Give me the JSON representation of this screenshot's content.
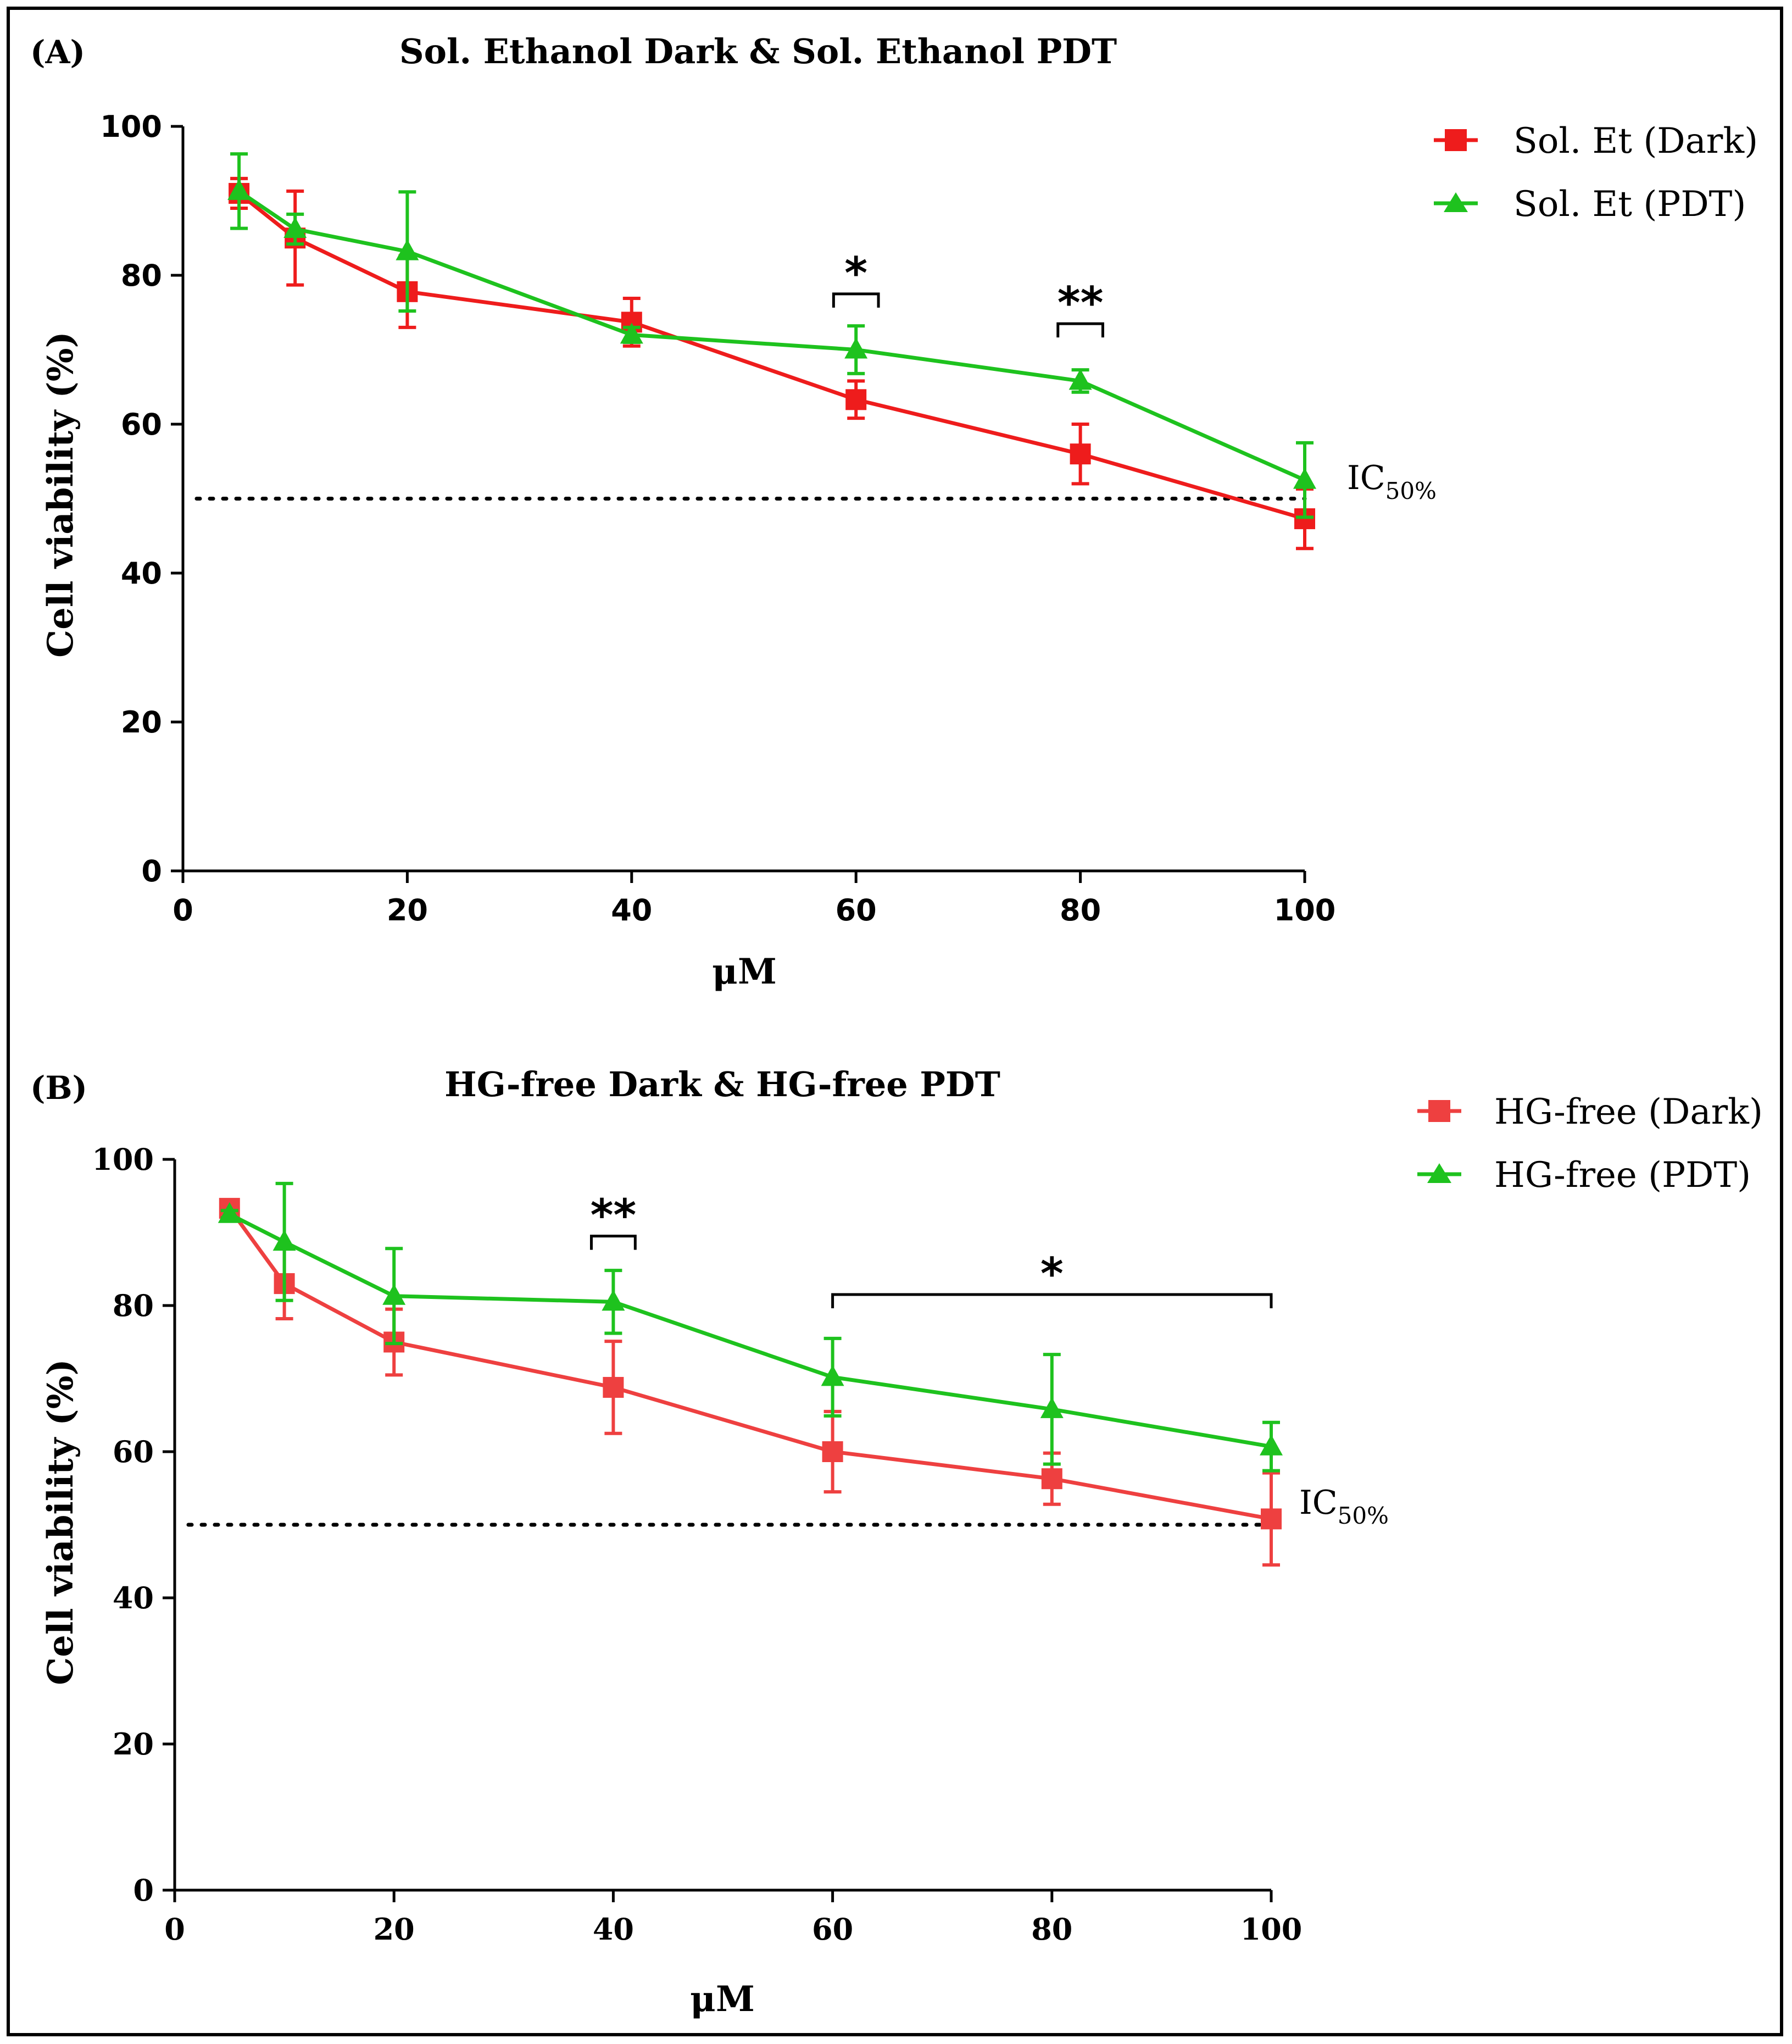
{
  "colors": {
    "dark_a": "#ee1c1c",
    "pdt": "#1ec21e",
    "dark_b": "#ee4040"
  },
  "chart_data": [
    {
      "type": "line",
      "panel_label": "(A)",
      "title": "Sol. Ethanol Dark & Sol. Ethanol PDT",
      "xlabel": "μM",
      "ylabel": "Cell viability (%)",
      "xlim": [
        0,
        100
      ],
      "ylim": [
        0,
        100
      ],
      "xticks": [
        0,
        20,
        40,
        60,
        80,
        100
      ],
      "yticks": [
        0,
        20,
        40,
        60,
        80,
        100
      ],
      "x_tick_labels": [
        "0",
        "20",
        "40",
        "60",
        "80",
        "100"
      ],
      "y_tick_labels": [
        "0",
        "20",
        "40",
        "60",
        "80",
        "100"
      ],
      "reference_line": {
        "y": 50,
        "style": "dotted",
        "label_main": "IC",
        "label_sub": "50%"
      },
      "legend_position": "top-right",
      "series": [
        {
          "name": "Sol. Et (Dark)",
          "marker": "square",
          "x": [
            5,
            10,
            20,
            40,
            60,
            80,
            100
          ],
          "values": [
            91,
            85,
            77.8,
            73.7,
            63.3,
            56,
            47.3
          ],
          "errors": [
            2.0,
            6.3,
            4.8,
            3.2,
            2.5,
            4.0,
            4.0
          ]
        },
        {
          "name": "Sol. Et (PDT)",
          "marker": "triangle",
          "x": [
            5,
            10,
            20,
            40,
            60,
            80,
            100
          ],
          "values": [
            91.3,
            86.2,
            83.2,
            72,
            70,
            65.8,
            52.5
          ],
          "errors": [
            5.0,
            2.0,
            8.0,
            1.0,
            3.2,
            1.5,
            5.0
          ]
        }
      ],
      "significance": [
        {
          "x1": 58,
          "x2": 62,
          "y": 77.5,
          "label": "*"
        },
        {
          "x1": 78,
          "x2": 82,
          "y": 73.5,
          "label": "**"
        }
      ]
    },
    {
      "type": "line",
      "panel_label": "(B)",
      "title": "HG-free Dark & HG-free PDT",
      "xlabel": "μM",
      "ylabel": "Cell viability (%)",
      "xlim": [
        0,
        100
      ],
      "ylim": [
        0,
        100
      ],
      "xticks": [
        0,
        20,
        40,
        60,
        80,
        100
      ],
      "yticks": [
        0,
        20,
        40,
        60,
        80,
        100
      ],
      "x_tick_labels": [
        "0",
        "20",
        "40",
        "60",
        "80",
        "100"
      ],
      "y_tick_labels": [
        "0",
        "20",
        "40",
        "60",
        "80",
        "100"
      ],
      "reference_line": {
        "y": 50,
        "style": "dotted",
        "label_main": "IC",
        "label_sub": "50%"
      },
      "legend_position": "top-right",
      "series": [
        {
          "name": "HG-free (Dark)",
          "marker": "square",
          "x": [
            5,
            10,
            20,
            40,
            60,
            80,
            100
          ],
          "values": [
            93.3,
            83,
            75,
            68.8,
            60,
            56.3,
            50.8
          ],
          "errors": [
            0.5,
            4.8,
            4.5,
            6.3,
            5.5,
            3.5,
            6.3
          ]
        },
        {
          "name": "HG-free (PDT)",
          "marker": "triangle",
          "x": [
            5,
            10,
            20,
            40,
            60,
            80,
            100
          ],
          "values": [
            92.5,
            88.7,
            81.3,
            80.5,
            70.2,
            65.8,
            60.7
          ],
          "errors": [
            0.5,
            8.0,
            6.5,
            4.3,
            5.3,
            7.5,
            3.3
          ]
        }
      ],
      "significance": [
        {
          "x1": 38,
          "x2": 42,
          "y": 89.5,
          "label": "**"
        },
        {
          "x1": 60,
          "x2": 100,
          "y": 81.5,
          "label": "*"
        }
      ]
    }
  ]
}
